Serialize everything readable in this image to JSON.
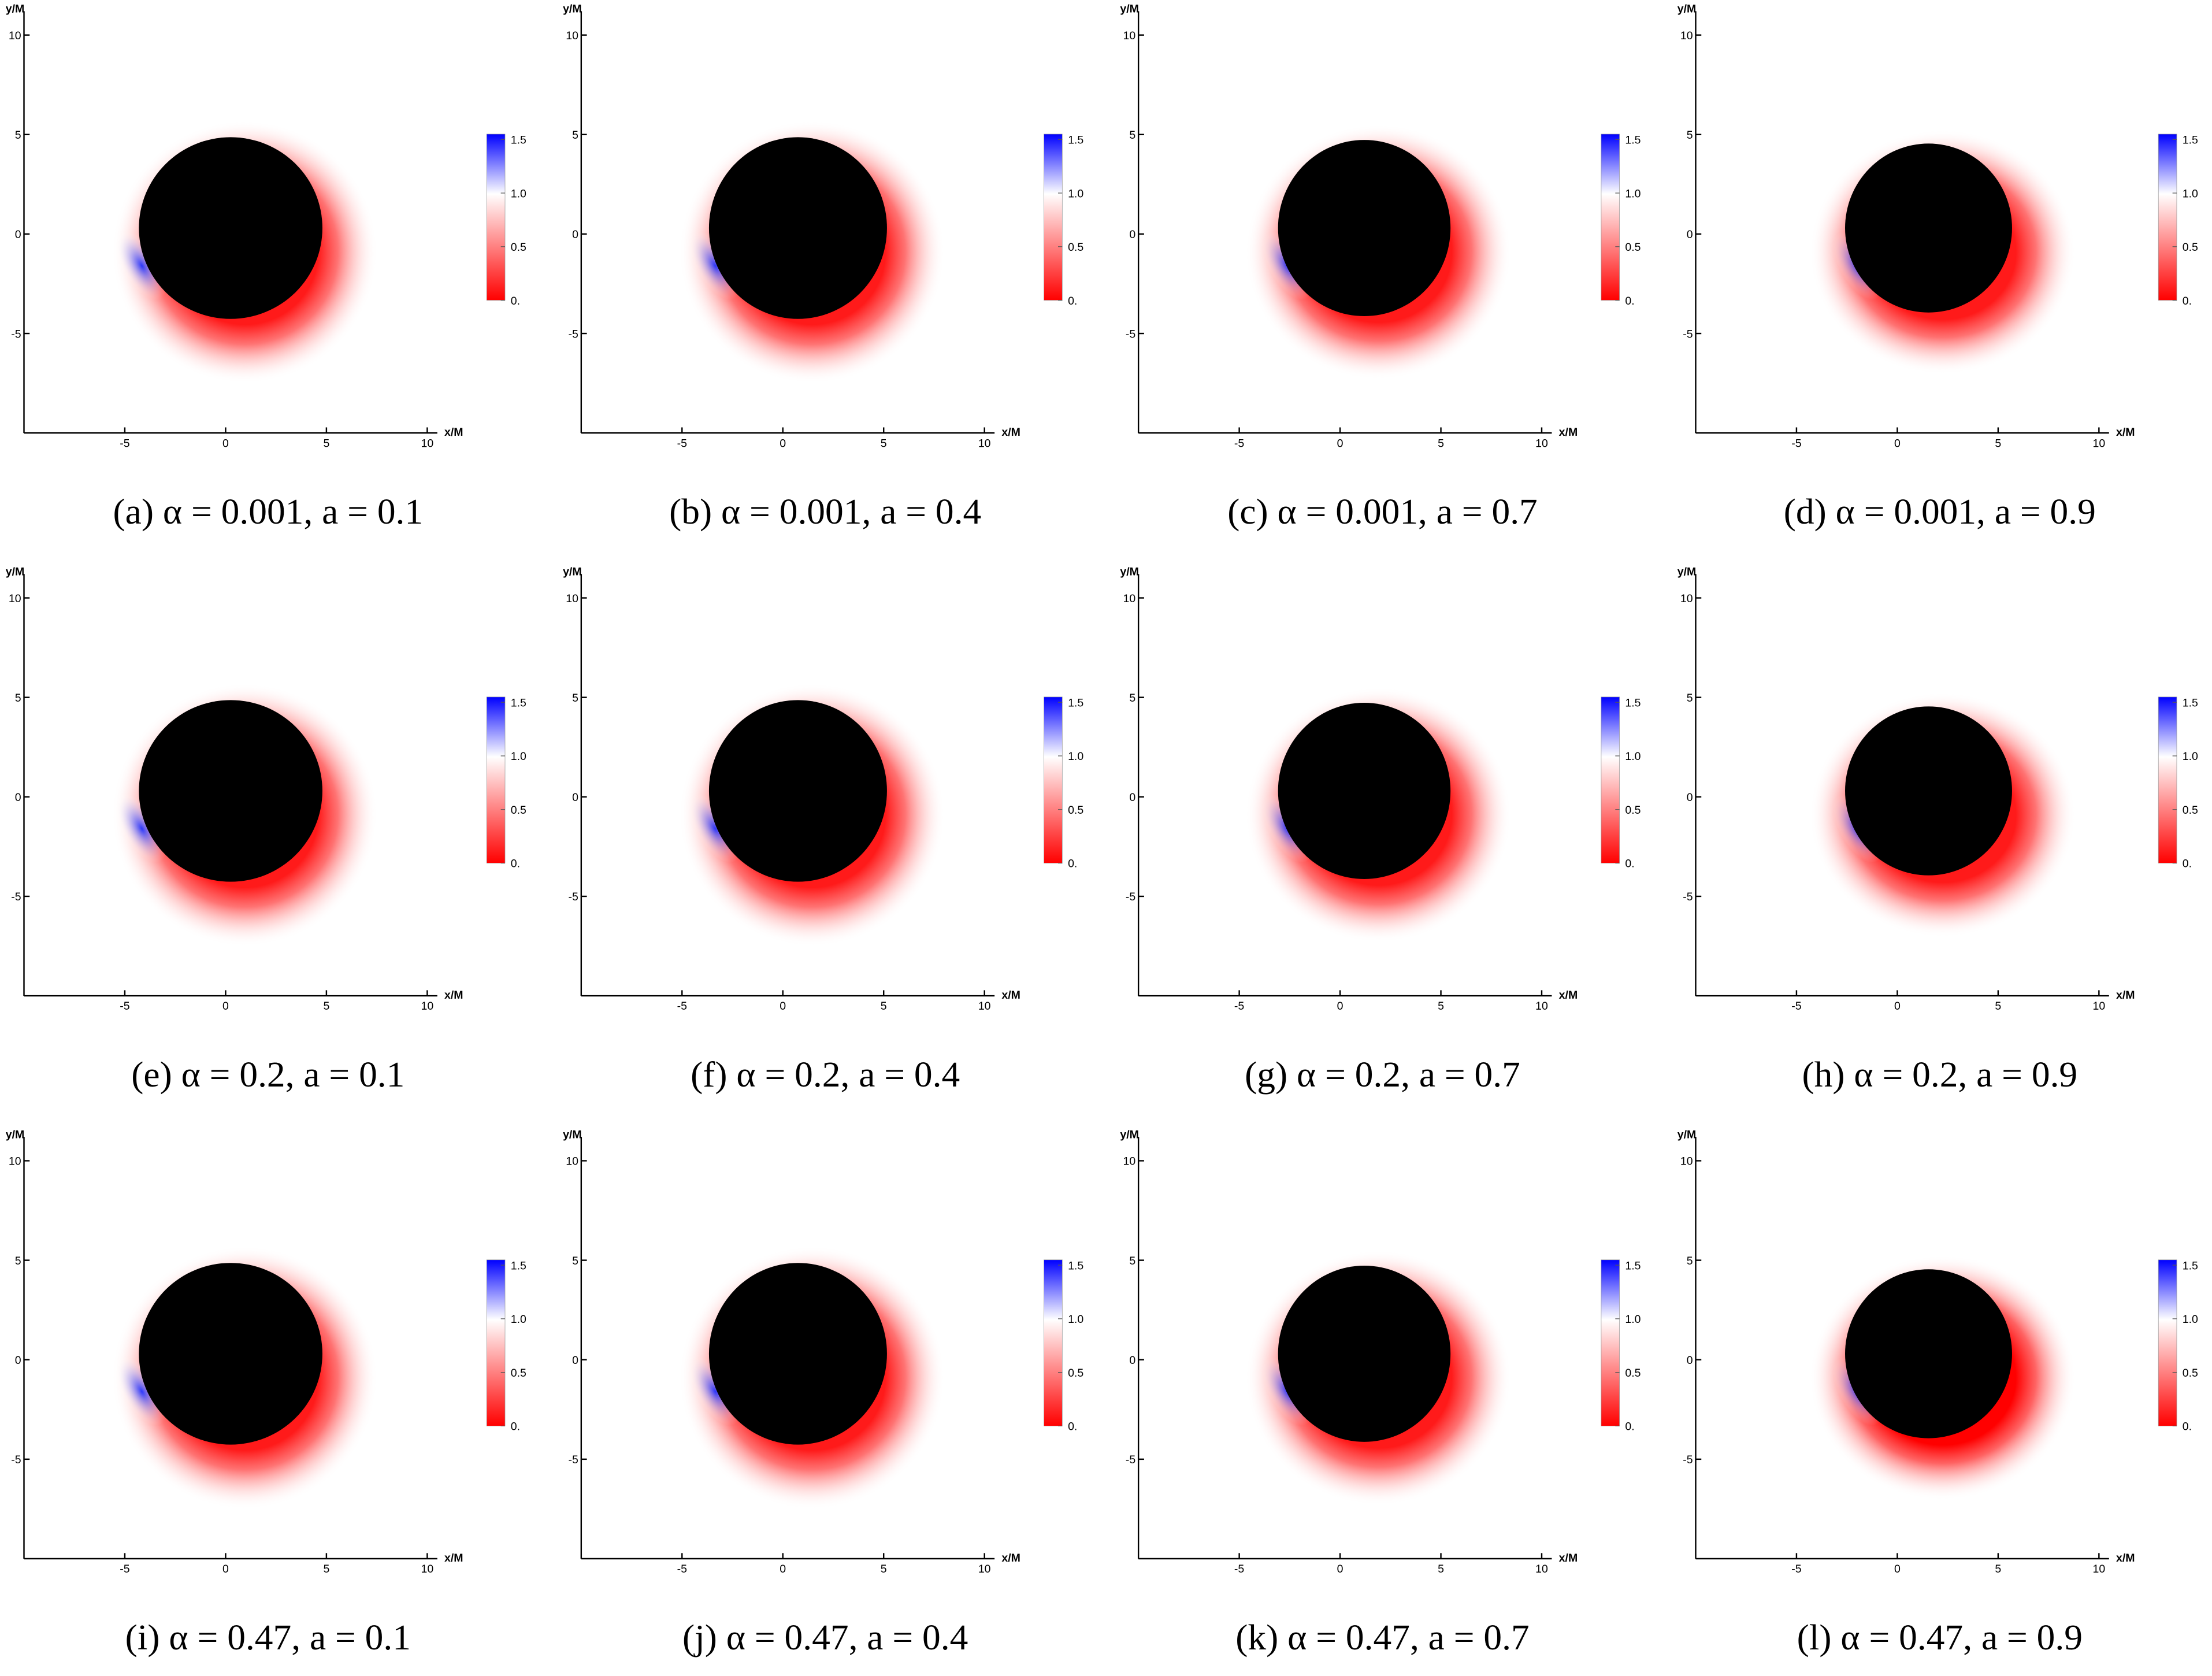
{
  "chart_data": [
    {
      "type": "density",
      "title": "(a) α = 0.001, a = 0.1",
      "xlabel": "x/M",
      "ylabel": "y/M",
      "xlim": [
        -10,
        10.5
      ],
      "ylim": [
        -10,
        11.2
      ],
      "xticks": [
        -5,
        0,
        5,
        10
      ],
      "yticks": [
        -5,
        0,
        5,
        10
      ],
      "colorbar": {
        "lim": [
          0,
          1.55
        ],
        "ticks": [
          {
            "value": 0,
            "label": "0."
          },
          0.5,
          {
            "value": 1,
            "label": "1.0"
          },
          1.5
        ],
        "colors": [
          "#ff0000",
          "#ffffff",
          "#0000ff"
        ]
      }
    },
    {
      "type": "density",
      "title": "(b) α = 0.001, a = 0.4",
      "xlabel": "x/M",
      "ylabel": "y/M",
      "xlim": [
        -10,
        10.5
      ],
      "ylim": [
        -10,
        11.2
      ],
      "xticks": [
        -5,
        0,
        5,
        10
      ],
      "yticks": [
        -5,
        0,
        5,
        10
      ],
      "colorbar": {
        "lim": [
          0,
          1.55
        ],
        "ticks": [
          {
            "value": 0,
            "label": "0."
          },
          0.5,
          {
            "value": 1,
            "label": "1.0"
          },
          1.5
        ],
        "colors": [
          "#ff0000",
          "#ffffff",
          "#0000ff"
        ]
      }
    },
    {
      "type": "density",
      "title": "(c) α = 0.001, a = 0.7",
      "xlabel": "x/M",
      "ylabel": "y/M",
      "xlim": [
        -10,
        10.5
      ],
      "ylim": [
        -10,
        11.2
      ],
      "xticks": [
        -5,
        0,
        5,
        10
      ],
      "yticks": [
        -5,
        0,
        5,
        10
      ],
      "colorbar": {
        "lim": [
          0,
          1.55
        ],
        "ticks": [
          {
            "value": 0,
            "label": "0."
          },
          0.5,
          {
            "value": 1,
            "label": "1.0"
          },
          1.5
        ],
        "colors": [
          "#ff0000",
          "#ffffff",
          "#0000ff"
        ]
      }
    },
    {
      "type": "density",
      "title": "(d) α = 0.001, a = 0.9",
      "xlabel": "x/M",
      "ylabel": "y/M",
      "xlim": [
        -10,
        10.5
      ],
      "ylim": [
        -10,
        11.2
      ],
      "xticks": [
        -5,
        0,
        5,
        10
      ],
      "yticks": [
        -5,
        0,
        5,
        10
      ],
      "colorbar": {
        "lim": [
          0,
          1.55
        ],
        "ticks": [
          {
            "value": 0,
            "label": "0."
          },
          0.5,
          {
            "value": 1,
            "label": "1.0"
          },
          1.5
        ],
        "colors": [
          "#ff0000",
          "#ffffff",
          "#0000ff"
        ]
      }
    },
    {
      "type": "density",
      "title": "(e) α = 0.2, a = 0.1",
      "xlabel": "x/M",
      "ylabel": "y/M",
      "xlim": [
        -10,
        10.5
      ],
      "ylim": [
        -10,
        11.2
      ],
      "xticks": [
        -5,
        0,
        5,
        10
      ],
      "yticks": [
        -5,
        0,
        5,
        10
      ],
      "colorbar": {
        "lim": [
          0,
          1.55
        ],
        "ticks": [
          {
            "value": 0,
            "label": "0."
          },
          0.5,
          {
            "value": 1,
            "label": "1.0"
          },
          1.5
        ],
        "colors": [
          "#ff0000",
          "#ffffff",
          "#0000ff"
        ]
      }
    },
    {
      "type": "density",
      "title": "(f) α = 0.2, a = 0.4",
      "xlabel": "x/M",
      "ylabel": "y/M",
      "xlim": [
        -10,
        10.5
      ],
      "ylim": [
        -10,
        11.2
      ],
      "xticks": [
        -5,
        0,
        5,
        10
      ],
      "yticks": [
        -5,
        0,
        5,
        10
      ],
      "colorbar": {
        "lim": [
          0,
          1.55
        ],
        "ticks": [
          {
            "value": 0,
            "label": "0."
          },
          0.5,
          {
            "value": 1,
            "label": "1.0"
          },
          1.5
        ],
        "colors": [
          "#ff0000",
          "#ffffff",
          "#0000ff"
        ]
      }
    },
    {
      "type": "density",
      "title": "(g) α = 0.2, a = 0.7",
      "xlabel": "x/M",
      "ylabel": "y/M",
      "xlim": [
        -10,
        10.5
      ],
      "ylim": [
        -10,
        11.2
      ],
      "xticks": [
        -5,
        0,
        5,
        10
      ],
      "yticks": [
        -5,
        0,
        5,
        10
      ],
      "colorbar": {
        "lim": [
          0,
          1.55
        ],
        "ticks": [
          {
            "value": 0,
            "label": "0."
          },
          0.5,
          {
            "value": 1,
            "label": "1.0"
          },
          1.5
        ],
        "colors": [
          "#ff0000",
          "#ffffff",
          "#0000ff"
        ]
      }
    },
    {
      "type": "density",
      "title": "(h) α = 0.2, a = 0.9",
      "xlabel": "x/M",
      "ylabel": "y/M",
      "xlim": [
        -10,
        10.5
      ],
      "ylim": [
        -10,
        11.2
      ],
      "xticks": [
        -5,
        0,
        5,
        10
      ],
      "yticks": [
        -5,
        0,
        5,
        10
      ],
      "colorbar": {
        "lim": [
          0,
          1.55
        ],
        "ticks": [
          {
            "value": 0,
            "label": "0."
          },
          0.5,
          {
            "value": 1,
            "label": "1.0"
          },
          1.5
        ],
        "colors": [
          "#ff0000",
          "#ffffff",
          "#0000ff"
        ]
      }
    },
    {
      "type": "density",
      "title": "(i) α = 0.47, a = 0.1",
      "xlabel": "x/M",
      "ylabel": "y/M",
      "xlim": [
        -10,
        10.5
      ],
      "ylim": [
        -10,
        11.2
      ],
      "xticks": [
        -5,
        0,
        5,
        10
      ],
      "yticks": [
        -5,
        0,
        5,
        10
      ],
      "colorbar": {
        "lim": [
          0,
          1.55
        ],
        "ticks": [
          {
            "value": 0,
            "label": "0."
          },
          0.5,
          {
            "value": 1,
            "label": "1.0"
          },
          1.5
        ],
        "colors": [
          "#ff0000",
          "#ffffff",
          "#0000ff"
        ]
      }
    },
    {
      "type": "density",
      "title": "(j) α = 0.47, a = 0.4",
      "xlabel": "x/M",
      "ylabel": "y/M",
      "xlim": [
        -10,
        10.5
      ],
      "ylim": [
        -10,
        11.2
      ],
      "xticks": [
        -5,
        0,
        5,
        10
      ],
      "yticks": [
        -5,
        0,
        5,
        10
      ],
      "colorbar": {
        "lim": [
          0,
          1.55
        ],
        "ticks": [
          {
            "value": 0,
            "label": "0."
          },
          0.5,
          {
            "value": 1,
            "label": "1.0"
          },
          1.5
        ],
        "colors": [
          "#ff0000",
          "#ffffff",
          "#0000ff"
        ]
      }
    },
    {
      "type": "density",
      "title": "(k) α = 0.47, a = 0.7",
      "xlabel": "x/M",
      "ylabel": "y/M",
      "xlim": [
        -10,
        10.5
      ],
      "ylim": [
        -10,
        11.2
      ],
      "xticks": [
        -5,
        0,
        5,
        10
      ],
      "yticks": [
        -5,
        0,
        5,
        10
      ],
      "colorbar": {
        "lim": [
          0,
          1.55
        ],
        "ticks": [
          {
            "value": 0,
            "label": "0."
          },
          0.5,
          {
            "value": 1,
            "label": "1.0"
          },
          1.5
        ],
        "colors": [
          "#ff0000",
          "#ffffff",
          "#0000ff"
        ]
      }
    },
    {
      "type": "density",
      "title": "(l) α = 0.47, a = 0.9",
      "xlabel": "x/M",
      "ylabel": "y/M",
      "xlim": [
        -10,
        10.5
      ],
      "ylim": [
        -10,
        11.2
      ],
      "xticks": [
        -5,
        0,
        5,
        10
      ],
      "yticks": [
        -5,
        0,
        5,
        10
      ],
      "colorbar": {
        "lim": [
          0,
          1.55
        ],
        "ticks": [
          {
            "value": 0,
            "label": "0."
          },
          0.5,
          {
            "value": 1,
            "label": "1.0"
          },
          1.5
        ],
        "colors": [
          "#ff0000",
          "#ffffff",
          "#0000ff"
        ]
      }
    }
  ]
}
